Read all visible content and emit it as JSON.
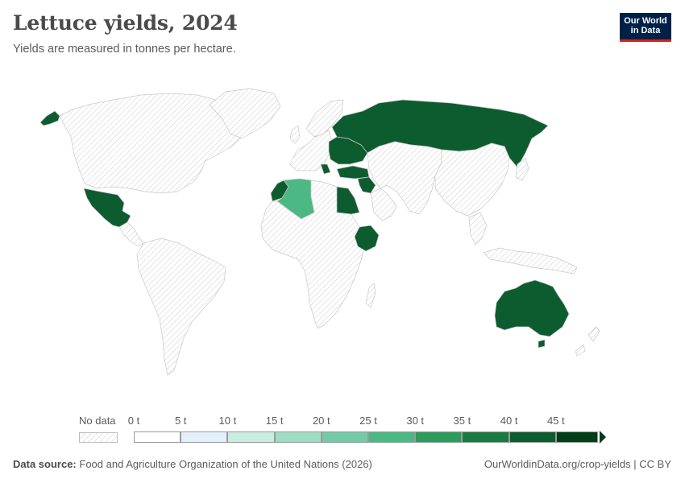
{
  "header": {
    "title": "Lettuce yields, 2024",
    "subtitle": "Yields are measured in tonnes per hectare."
  },
  "logo": {
    "line1": "Our World",
    "line2": "in Data"
  },
  "chart_data": {
    "type": "choropleth",
    "title": "Lettuce yields, 2024",
    "unit": "tonnes per hectare",
    "scale_bins": [
      0,
      5,
      10,
      15,
      20,
      25,
      30,
      35,
      40,
      45
    ],
    "bin_colors": [
      "#ffffff",
      "#e2f0f9",
      "#c9ece1",
      "#9fdcc5",
      "#74c9a7",
      "#4cb884",
      "#2e9a5c",
      "#1a7a41",
      "#0d5c2f",
      "#003d19"
    ],
    "regions": [
      {
        "name": "Russia",
        "bin": "45+"
      },
      {
        "name": "Ukraine",
        "bin": "45+"
      },
      {
        "name": "Belarus",
        "bin": "45+"
      },
      {
        "name": "Moldova",
        "bin": "45+"
      },
      {
        "name": "Romania",
        "bin": "45+"
      },
      {
        "name": "Greece",
        "bin": "45+"
      },
      {
        "name": "Turkey",
        "bin": "45+"
      },
      {
        "name": "Syria",
        "bin": "45+"
      },
      {
        "name": "Jordan",
        "bin": "45+"
      },
      {
        "name": "Egypt",
        "bin": "45+"
      },
      {
        "name": "Ethiopia",
        "bin": "45+"
      },
      {
        "name": "Morocco",
        "bin": "45+"
      },
      {
        "name": "Mexico",
        "bin": "45+"
      },
      {
        "name": "Australia",
        "bin": "45+"
      },
      {
        "name": "Algeria",
        "bin": "25-30"
      }
    ]
  },
  "legend": {
    "no_data_label": "No data",
    "ticks": [
      "0 t",
      "5 t",
      "10 t",
      "15 t",
      "20 t",
      "25 t",
      "30 t",
      "35 t",
      "40 t",
      "45 t"
    ]
  },
  "footer": {
    "source_label": "Data source:",
    "source_text": "Food and Agriculture Organization of the United Nations (2026)",
    "url_text": "OurWorldinData.org/crop-yields | CC BY"
  }
}
